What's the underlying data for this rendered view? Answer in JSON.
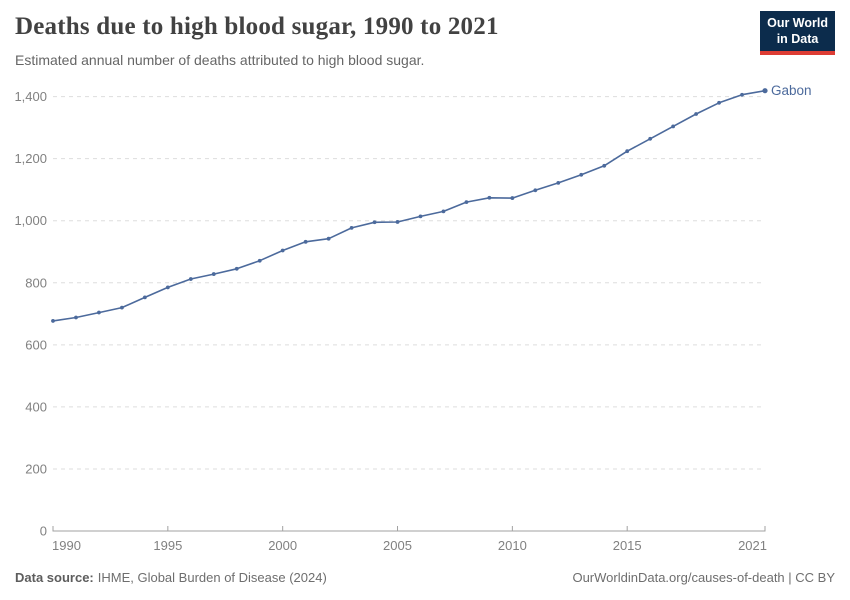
{
  "header": {
    "title": "Deaths due to high blood sugar, 1990 to 2021",
    "subtitle": "Estimated annual number of deaths attributed to high blood sugar.",
    "logo": {
      "line1": "Our World",
      "line2": "in Data"
    }
  },
  "chart_data": {
    "type": "line",
    "title": "Deaths due to high blood sugar, 1990 to 2021",
    "subtitle": "Estimated annual number of deaths attributed to high blood sugar.",
    "x": [
      1990,
      1991,
      1992,
      1993,
      1994,
      1995,
      1996,
      1997,
      1998,
      1999,
      2000,
      2001,
      2002,
      2003,
      2004,
      2005,
      2006,
      2007,
      2008,
      2009,
      2010,
      2011,
      2012,
      2013,
      2014,
      2015,
      2016,
      2017,
      2018,
      2019,
      2020,
      2021
    ],
    "series": [
      {
        "name": "Gabon",
        "color": "#4c6a9c",
        "values": [
          677,
          688,
          704,
          720,
          753,
          785,
          812,
          828,
          845,
          871,
          904,
          932,
          942,
          977,
          995,
          996,
          1014,
          1030,
          1060,
          1074,
          1073,
          1098,
          1122,
          1148,
          1177,
          1224,
          1264,
          1304,
          1344,
          1380,
          1406,
          1419
        ]
      }
    ],
    "xlim": [
      1990,
      2021
    ],
    "ylim": [
      0,
      1400
    ],
    "xticks": [
      1990,
      1995,
      2000,
      2005,
      2010,
      2015,
      2021
    ],
    "yticks": [
      0,
      200,
      400,
      600,
      800,
      1000,
      1200,
      1400
    ],
    "ytick_labels": [
      "0",
      "200",
      "400",
      "600",
      "800",
      "1,000",
      "1,200",
      "1,400"
    ],
    "grid": "horizontal-dashed",
    "legend_position": "end-of-line-label",
    "entity_label": "Gabon"
  },
  "colors": {
    "line": "#4c6a9c",
    "grid": "#dddddd",
    "axis": "#a1a1a1",
    "tick_label": "#818181",
    "logo_bg": "#0c2c4c",
    "logo_accent": "#dd3c34"
  },
  "footer": {
    "source_label": "Data source:",
    "source_text": "IHME, Global Burden of Disease (2024)",
    "link_text": "OurWorldinData.org/causes-of-death | CC BY"
  }
}
